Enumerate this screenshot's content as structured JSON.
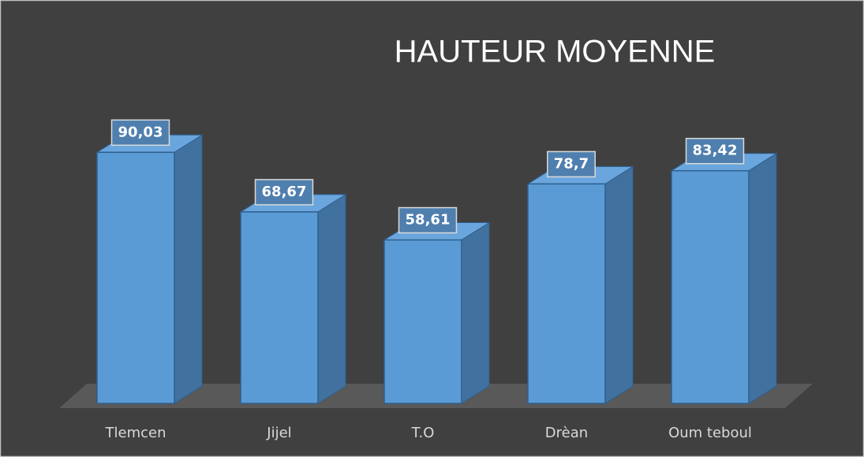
{
  "chart_data": {
    "type": "bar3d",
    "title": "HAUTEUR MOYENNE",
    "categories": [
      "Tlemcen",
      "Jijel",
      "T.O",
      "Drèan",
      "Oum teboul"
    ],
    "values": [
      90.03,
      68.67,
      58.61,
      78.7,
      83.42
    ],
    "value_labels": [
      "90,03",
      "68,67",
      "58,61",
      "78,7",
      "83,42"
    ],
    "color": "#5b9bd5"
  }
}
